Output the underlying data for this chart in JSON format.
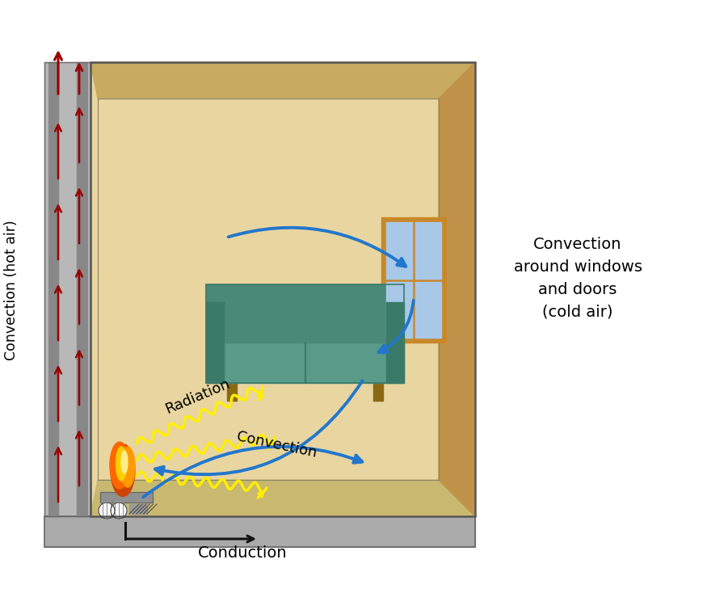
{
  "bg_color": "#ffffff",
  "wall_color": "#b8b8b8",
  "wall_inner": "#a0a0a0",
  "wall_dark_strip": "#888888",
  "room_bg": "#e8d5a0",
  "room_floor": "#c8b870",
  "room_wall_right": "#c0924a",
  "room_ceiling_top": "#c8aa60",
  "window_frame": "#c8882a",
  "window_glass": "#a8c8e8",
  "sofa_color": "#5a9a88",
  "sofa_dark": "#3a7a68",
  "sofa_back_color": "#4a8878",
  "fire_orange": "#ff6600",
  "fire_yellow": "#ffdd00",
  "radiation_color": "#ffee00",
  "convection_arrow_color": "#2277cc",
  "hot_air_arrow_color": "#990000",
  "conduction_color": "#111111",
  "label_color": "#000000",
  "title_right": "Convection\naround windows\nand doors\n(cold air)",
  "label_convection_hot": "Convection (hot air)",
  "label_radiation": "Radiation",
  "label_convection_room": "Convection",
  "label_conduction": "Conduction"
}
